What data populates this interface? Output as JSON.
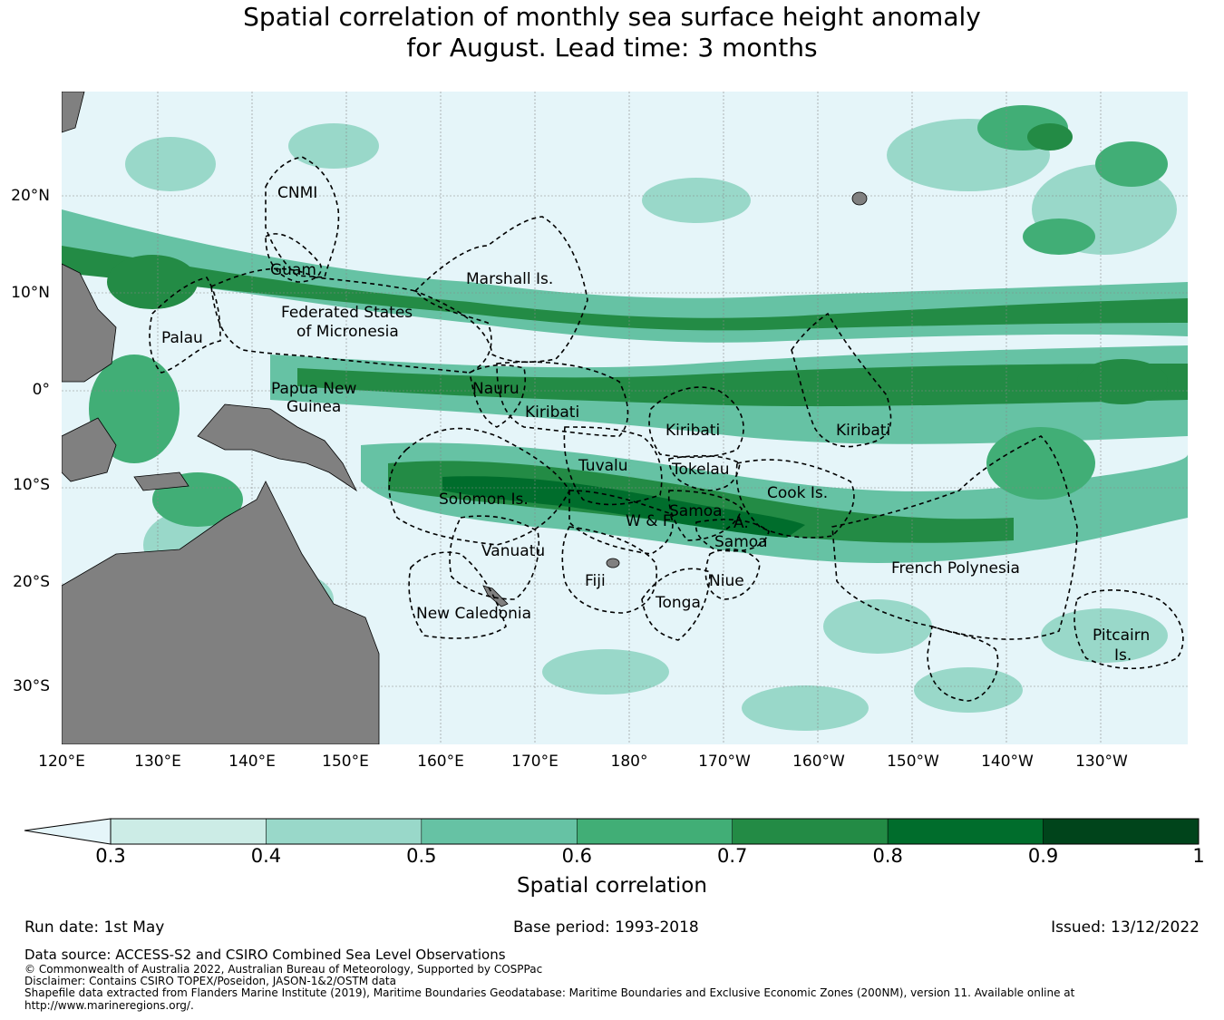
{
  "title": {
    "line1": "Spatial correlation of monthly sea surface height anomaly",
    "line2": "for August. Lead time: 3 months"
  },
  "map": {
    "lat_ticks": [
      "20°N",
      "10°N",
      "0°",
      "10°S",
      "20°S",
      "30°S"
    ],
    "lon_ticks": [
      "120°E",
      "130°E",
      "140°E",
      "150°E",
      "160°E",
      "170°E",
      "180°",
      "170°W",
      "160°W",
      "150°W",
      "140°W",
      "130°W"
    ],
    "land_color": "#808080",
    "ocean_low_color": "#e5f5f9",
    "regions": [
      {
        "name": "CNMI"
      },
      {
        "name": "Guam"
      },
      {
        "name": "Marshall Is."
      },
      {
        "name": "Federated States"
      },
      {
        "name": "of Micronesia"
      },
      {
        "name": "Palau"
      },
      {
        "name": "Papua New"
      },
      {
        "name": "Guinea"
      },
      {
        "name": "Nauru"
      },
      {
        "name": "Kiribati"
      },
      {
        "name": "Kiribati"
      },
      {
        "name": "Kiribati"
      },
      {
        "name": "Tuvalu"
      },
      {
        "name": "Tokelau"
      },
      {
        "name": "Cook Is."
      },
      {
        "name": "Solomon Is."
      },
      {
        "name": "Samoa"
      },
      {
        "name": "W & F"
      },
      {
        "name": "A."
      },
      {
        "name": "Samoa"
      },
      {
        "name": "Vanuatu"
      },
      {
        "name": "Fiji"
      },
      {
        "name": "Niue"
      },
      {
        "name": "Tonga"
      },
      {
        "name": "French Polynesia"
      },
      {
        "name": "New Caledonia"
      },
      {
        "name": "Pitcairn"
      },
      {
        "name": "Is."
      }
    ]
  },
  "colorbar": {
    "ticks": [
      "0.3",
      "0.4",
      "0.5",
      "0.6",
      "0.7",
      "0.8",
      "0.9",
      "1"
    ],
    "bins": [
      {
        "from": 0.3,
        "to": 0.4,
        "color": "#ccece6"
      },
      {
        "from": 0.4,
        "to": 0.5,
        "color": "#99d8c9"
      },
      {
        "from": 0.5,
        "to": 0.6,
        "color": "#66c2a4"
      },
      {
        "from": 0.6,
        "to": 0.7,
        "color": "#41ae76"
      },
      {
        "from": 0.7,
        "to": 0.8,
        "color": "#238b45"
      },
      {
        "from": 0.8,
        "to": 0.9,
        "color": "#006d2c"
      },
      {
        "from": 0.9,
        "to": 1.0,
        "color": "#00441b"
      }
    ],
    "under_color": "#e5f5f9",
    "label": "Spatial correlation"
  },
  "footer": {
    "run_date": "Run date: 1st May",
    "base_period": "Base period: 1993-2018",
    "issued": "Issued: 13/12/2022",
    "data_source": "Data source: ACCESS-S2 and CSIRO Combined Sea Level Observations",
    "copyright": "© Commonwealth of Australia 2022, Australian Bureau of Meteorology, Supported by COSPPac",
    "disclaimer": "Disclaimer: Contains CSIRO TOPEX/Poseidon, JASON-1&2/OSTM data",
    "shapefile": "Shapefile data extracted from Flanders Marine Institute (2019), Maritime Boundaries Geodatabase: Maritime Boundaries and Exclusive Economic Zones (200NM), version 11. Available online at",
    "url": "http://www.marineregions.org/."
  }
}
